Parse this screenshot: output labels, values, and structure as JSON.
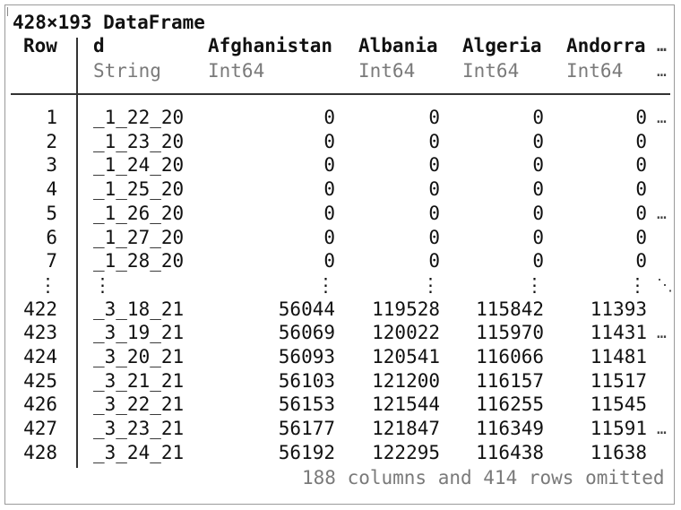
{
  "title": "428×193 DataFrame",
  "header": {
    "row_label": "Row",
    "columns": [
      {
        "name": "d",
        "type": "String"
      },
      {
        "name": "Afghanistan",
        "type": "Int64"
      },
      {
        "name": "Albania",
        "type": "Int64"
      },
      {
        "name": "Algeria",
        "type": "Int64"
      },
      {
        "name": "Andorra",
        "type": "Int64"
      }
    ],
    "more": "…"
  },
  "rows": [
    {
      "row": "1",
      "d": "_1_22_20",
      "afg": "0",
      "alb": "0",
      "alg": "0",
      "and": "0",
      "more": "…"
    },
    {
      "row": "2",
      "d": "_1_23_20",
      "afg": "0",
      "alb": "0",
      "alg": "0",
      "and": "0",
      "more": ""
    },
    {
      "row": "3",
      "d": "_1_24_20",
      "afg": "0",
      "alb": "0",
      "alg": "0",
      "and": "0",
      "more": ""
    },
    {
      "row": "4",
      "d": "_1_25_20",
      "afg": "0",
      "alb": "0",
      "alg": "0",
      "and": "0",
      "more": ""
    },
    {
      "row": "5",
      "d": "_1_26_20",
      "afg": "0",
      "alb": "0",
      "alg": "0",
      "and": "0",
      "more": "…"
    },
    {
      "row": "6",
      "d": "_1_27_20",
      "afg": "0",
      "alb": "0",
      "alg": "0",
      "and": "0",
      "more": ""
    },
    {
      "row": "7",
      "d": "_1_28_20",
      "afg": "0",
      "alb": "0",
      "alg": "0",
      "and": "0",
      "more": ""
    },
    {
      "row": "⋮",
      "d": "⋮",
      "afg": "⋮",
      "alb": "⋮",
      "alg": "⋮",
      "and": "⋮",
      "more": "⋱"
    },
    {
      "row": "422",
      "d": "_3_18_21",
      "afg": "56044",
      "alb": "119528",
      "alg": "115842",
      "and": "11393",
      "more": ""
    },
    {
      "row": "423",
      "d": "_3_19_21",
      "afg": "56069",
      "alb": "120022",
      "alg": "115970",
      "and": "11431",
      "more": "…"
    },
    {
      "row": "424",
      "d": "_3_20_21",
      "afg": "56093",
      "alb": "120541",
      "alg": "116066",
      "and": "11481",
      "more": ""
    },
    {
      "row": "425",
      "d": "_3_21_21",
      "afg": "56103",
      "alb": "121200",
      "alg": "116157",
      "and": "11517",
      "more": ""
    },
    {
      "row": "426",
      "d": "_3_22_21",
      "afg": "56153",
      "alb": "121544",
      "alg": "116255",
      "and": "11545",
      "more": ""
    },
    {
      "row": "427",
      "d": "_3_23_21",
      "afg": "56177",
      "alb": "121847",
      "alg": "116349",
      "and": "11591",
      "more": "…"
    },
    {
      "row": "428",
      "d": "_3_24_21",
      "afg": "56192",
      "alb": "122295",
      "alg": "116438",
      "and": "11638",
      "more": ""
    }
  ],
  "footer": "188 columns and 414 rows omitted"
}
